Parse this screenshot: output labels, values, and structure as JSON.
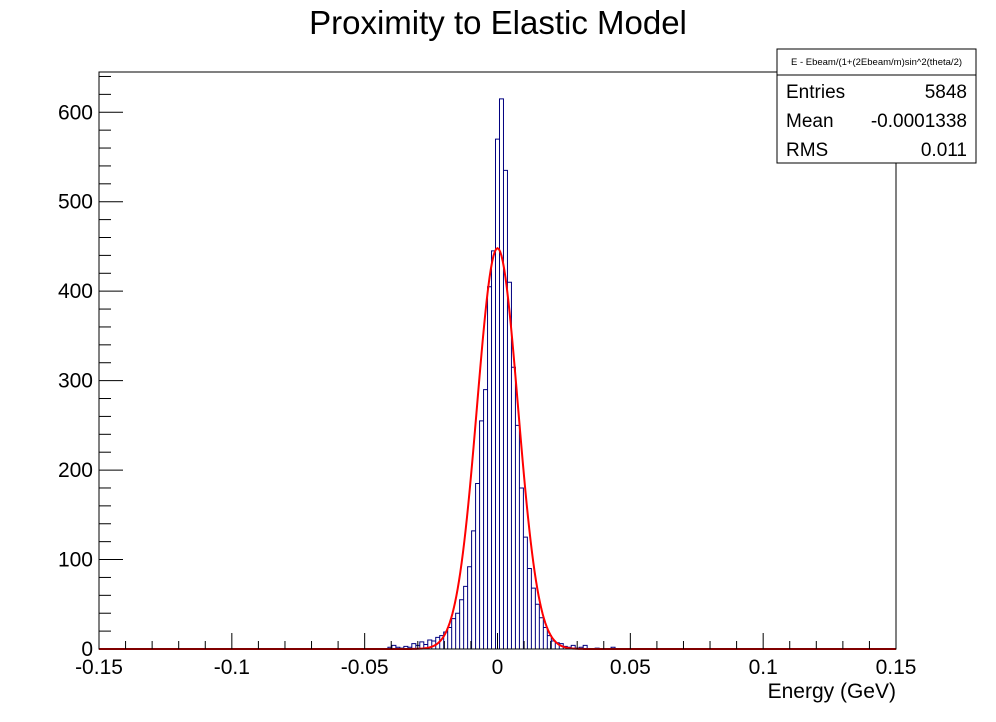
{
  "chart_data": {
    "type": "bar",
    "title": "Proximity to Elastic Model",
    "xlabel": "Energy (GeV)",
    "ylabel": "",
    "xlim": [
      -0.15,
      0.15
    ],
    "ylim": [
      0,
      645
    ],
    "x_ticks": [
      {
        "value": -0.15,
        "label": "-0.15"
      },
      {
        "value": -0.1,
        "label": "-0.1"
      },
      {
        "value": -0.05,
        "label": "-0.05"
      },
      {
        "value": 0,
        "label": "0"
      },
      {
        "value": 0.05,
        "label": "0.05"
      },
      {
        "value": 0.1,
        "label": "0.1"
      },
      {
        "value": 0.15,
        "label": "0.15"
      }
    ],
    "y_ticks": [
      {
        "value": 0,
        "label": "0"
      },
      {
        "value": 100,
        "label": "100"
      },
      {
        "value": 200,
        "label": "200"
      },
      {
        "value": 300,
        "label": "300"
      },
      {
        "value": 400,
        "label": "400"
      },
      {
        "value": 500,
        "label": "500"
      },
      {
        "value": 600,
        "label": "600"
      }
    ],
    "grid": false,
    "stats_box": {
      "title": "E - Ebeam/(1+(2Ebeam/m)sin^2(theta/2)",
      "rows": [
        {
          "label": "Entries",
          "value": "5848"
        },
        {
          "label": "Mean",
          "value": "-0.0001338"
        },
        {
          "label": "RMS",
          "value": "0.011"
        }
      ]
    },
    "histogram": {
      "bin_width": 0.0015,
      "color": "#000080",
      "bins": [
        {
          "x": -0.0405,
          "y": 2
        },
        {
          "x": -0.039,
          "y": 4
        },
        {
          "x": -0.0375,
          "y": 2
        },
        {
          "x": -0.036,
          "y": 1
        },
        {
          "x": -0.0345,
          "y": 3
        },
        {
          "x": -0.033,
          "y": 2
        },
        {
          "x": -0.0315,
          "y": 6
        },
        {
          "x": -0.03,
          "y": 4
        },
        {
          "x": -0.0285,
          "y": 8
        },
        {
          "x": -0.027,
          "y": 5
        },
        {
          "x": -0.0255,
          "y": 10
        },
        {
          "x": -0.024,
          "y": 9
        },
        {
          "x": -0.0225,
          "y": 13
        },
        {
          "x": -0.021,
          "y": 15
        },
        {
          "x": -0.0195,
          "y": 19
        },
        {
          "x": -0.018,
          "y": 24
        },
        {
          "x": -0.0165,
          "y": 34
        },
        {
          "x": -0.015,
          "y": 40
        },
        {
          "x": -0.0135,
          "y": 55
        },
        {
          "x": -0.012,
          "y": 70
        },
        {
          "x": -0.0105,
          "y": 92
        },
        {
          "x": -0.009,
          "y": 132
        },
        {
          "x": -0.0075,
          "y": 185
        },
        {
          "x": -0.006,
          "y": 255
        },
        {
          "x": -0.0045,
          "y": 290
        },
        {
          "x": -0.003,
          "y": 405
        },
        {
          "x": -0.0015,
          "y": 445
        },
        {
          "x": 0.0,
          "y": 570
        },
        {
          "x": 0.0015,
          "y": 615
        },
        {
          "x": 0.003,
          "y": 535
        },
        {
          "x": 0.0045,
          "y": 410
        },
        {
          "x": 0.006,
          "y": 315
        },
        {
          "x": 0.0075,
          "y": 250
        },
        {
          "x": 0.009,
          "y": 180
        },
        {
          "x": 0.0105,
          "y": 125
        },
        {
          "x": 0.012,
          "y": 90
        },
        {
          "x": 0.0135,
          "y": 68
        },
        {
          "x": 0.015,
          "y": 50
        },
        {
          "x": 0.0165,
          "y": 35
        },
        {
          "x": 0.018,
          "y": 24
        },
        {
          "x": 0.0195,
          "y": 15
        },
        {
          "x": 0.021,
          "y": 9
        },
        {
          "x": 0.0225,
          "y": 7
        },
        {
          "x": 0.024,
          "y": 6
        },
        {
          "x": 0.0255,
          "y": 3
        },
        {
          "x": 0.027,
          "y": 2
        },
        {
          "x": 0.0285,
          "y": 4
        },
        {
          "x": 0.03,
          "y": 1
        },
        {
          "x": 0.0315,
          "y": 2
        },
        {
          "x": 0.033,
          "y": 4
        },
        {
          "x": 0.0375,
          "y": 1
        },
        {
          "x": 0.0435,
          "y": 2
        }
      ]
    },
    "fit": {
      "type": "gaussian",
      "color": "#ff0000",
      "amplitude": 448,
      "mean": 0.0,
      "sigma": 0.0077
    }
  }
}
